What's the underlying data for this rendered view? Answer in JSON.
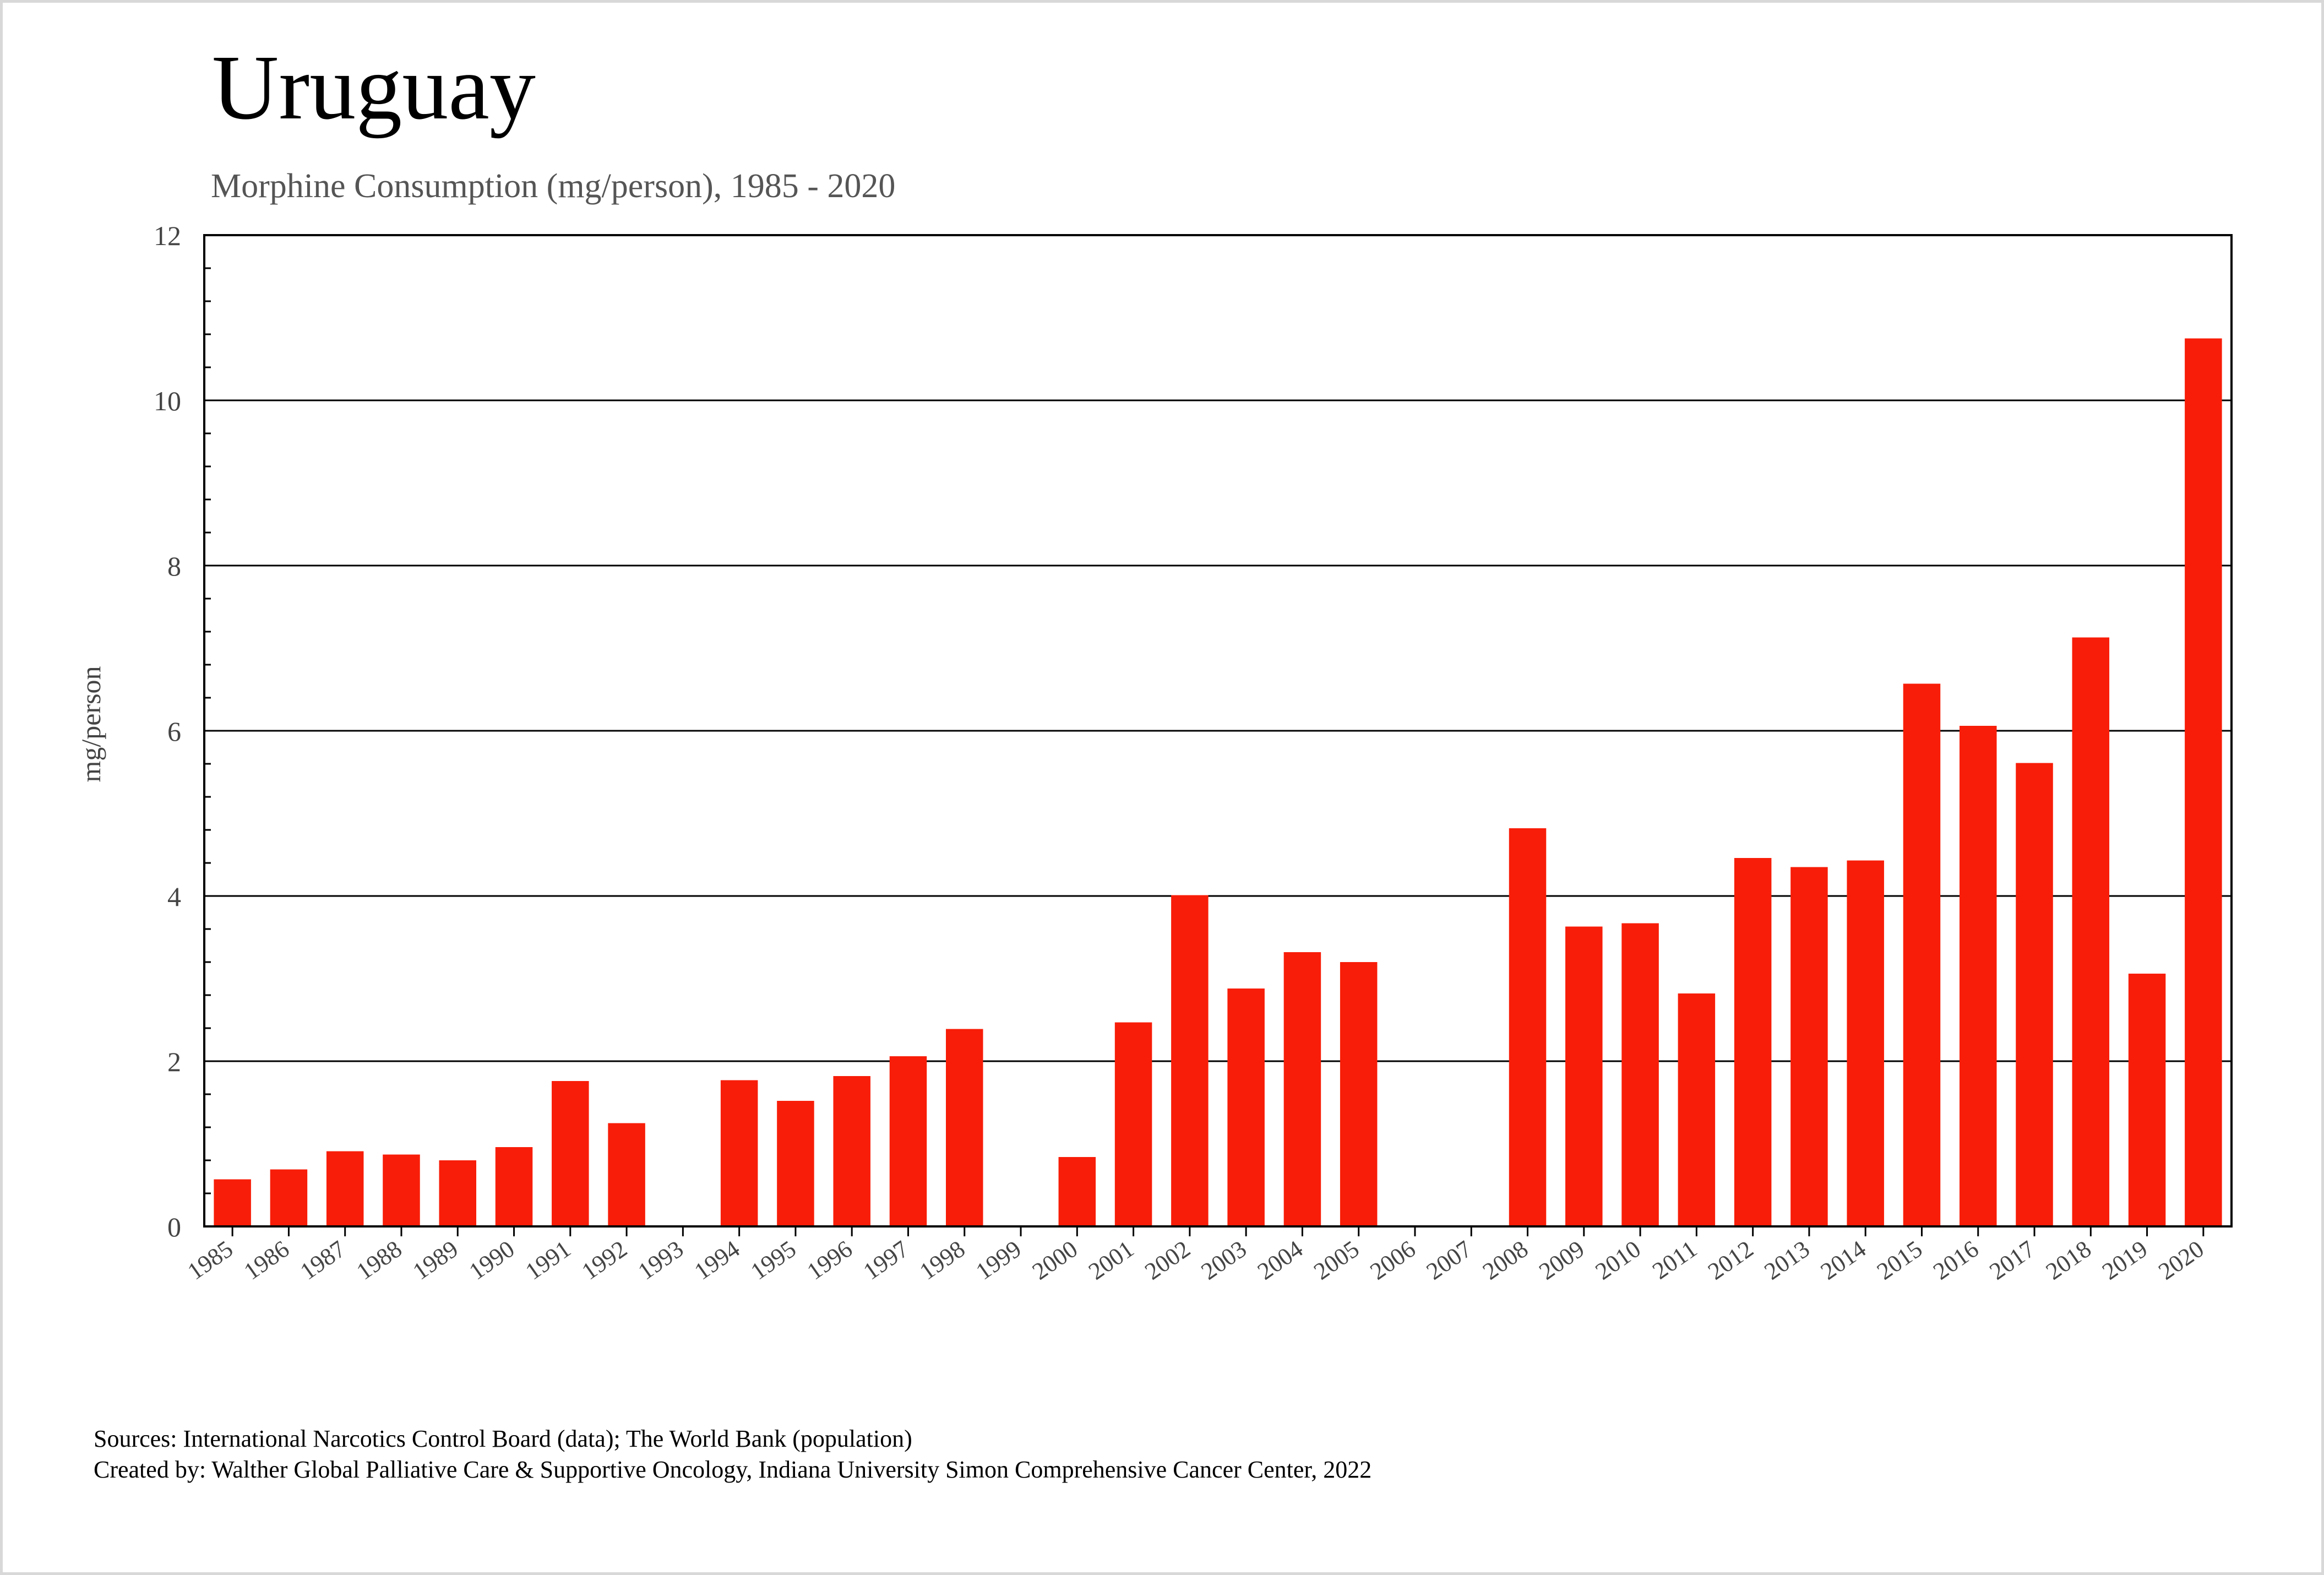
{
  "chart_data": {
    "type": "bar",
    "title": "Uruguay",
    "subtitle": "Morphine Consumption (mg/person), 1985 - 2020",
    "xlabel": "",
    "ylabel": "mg/person",
    "ylim": [
      0,
      12
    ],
    "yticks": [
      0,
      2,
      4,
      6,
      8,
      10,
      12
    ],
    "grid": true,
    "categories": [
      "1985",
      "1986",
      "1987",
      "1988",
      "1989",
      "1990",
      "1991",
      "1992",
      "1993",
      "1994",
      "1995",
      "1996",
      "1997",
      "1998",
      "1999",
      "2000",
      "2001",
      "2002",
      "2003",
      "2004",
      "2005",
      "2006",
      "2007",
      "2008",
      "2009",
      "2010",
      "2011",
      "2012",
      "2013",
      "2014",
      "2015",
      "2016",
      "2017",
      "2018",
      "2019",
      "2020"
    ],
    "values": [
      0.57,
      0.69,
      0.91,
      0.87,
      0.8,
      0.96,
      1.76,
      1.25,
      null,
      1.77,
      1.52,
      1.82,
      2.06,
      2.39,
      null,
      0.84,
      2.47,
      4.01,
      2.88,
      3.32,
      3.2,
      null,
      null,
      4.82,
      3.63,
      3.67,
      2.82,
      4.46,
      4.35,
      4.43,
      6.57,
      6.06,
      5.61,
      7.13,
      3.06,
      10.75
    ],
    "bar_color": "#f81d08"
  },
  "footer": {
    "sources": "Sources: International Narcotics Control Board (data); The World Bank (population)",
    "created_by": "Created by: Walther  Global Palliative Care & Supportive Oncology, Indiana University Simon Comprehensive Cancer Center, 2022"
  }
}
